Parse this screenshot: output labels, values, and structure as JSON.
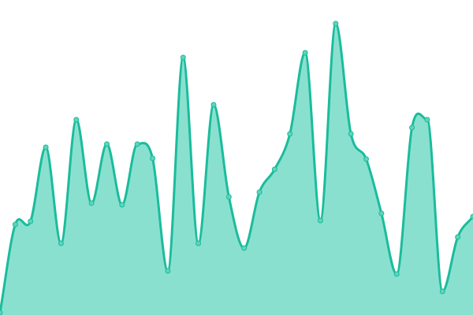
{
  "chart_data": {
    "type": "area",
    "title": "",
    "xlabel": "",
    "ylabel": "",
    "grid": false,
    "legend": "none",
    "curve": "smooth",
    "ylim": [
      0,
      400
    ],
    "x": [
      0,
      1,
      2,
      3,
      4,
      5,
      6,
      7,
      8,
      9,
      10,
      11,
      12,
      13,
      14,
      15,
      16,
      17,
      18,
      19,
      20,
      21,
      22,
      23,
      24,
      25,
      26,
      27,
      28,
      29,
      30,
      31
    ],
    "values": [
      3,
      115,
      119,
      213,
      91,
      248,
      142,
      217,
      140,
      217,
      199,
      56,
      327,
      91,
      267,
      150,
      85,
      156,
      185,
      230,
      333,
      120,
      370,
      230,
      198,
      129,
      52,
      238,
      248,
      30,
      99,
      125
    ],
    "colors": {
      "line": "#1abc9c",
      "fill": "#8ae0cf",
      "point": "#5fd4ba"
    }
  }
}
